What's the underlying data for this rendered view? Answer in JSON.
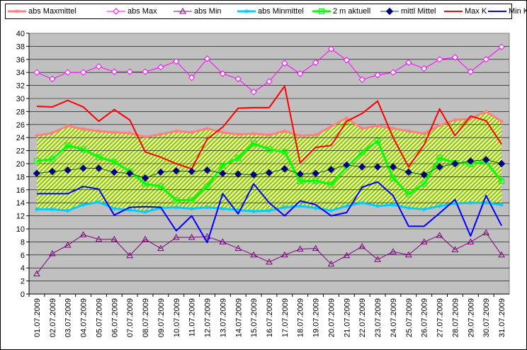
{
  "chart_data": {
    "type": "line",
    "title": "",
    "xlabel": "",
    "ylabel": "",
    "ylim": [
      0,
      40
    ],
    "ytick_step": 2,
    "grid": "horizontal",
    "legend_position": "top",
    "plot_background": "#c0c0c0",
    "categories": [
      "01.07.2009",
      "02.07.2009",
      "03.07.2009",
      "04.07.2009",
      "05.07.2009",
      "06.07.2009",
      "07.07.2009",
      "08.07.2009",
      "09.07.2009",
      "10.07.2009",
      "11.07.2009",
      "12.07.2009",
      "13.07.2009",
      "14.07.2009",
      "15.07.2009",
      "16.07.2009",
      "17.07.2009",
      "18.07.2009",
      "19.07.2009",
      "20.07.2009",
      "21.07.2009",
      "22.07.2009",
      "23.07.2009",
      "24.07.2009",
      "25.07.2009",
      "26.07.2009",
      "27.07.2009",
      "28.07.2009",
      "29.07.2009",
      "30.07.2009",
      "31.07.2009"
    ],
    "band": {
      "upper_series": "abs Maxmittel",
      "lower_series": "abs Minmittel",
      "fill": "#99cc00",
      "hatch": "#ffffff"
    },
    "series": [
      {
        "name": "abs Maxmittel",
        "color": "#ff8080",
        "marker": "star",
        "width": 3,
        "values": [
          24.3,
          24.7,
          25.8,
          25.3,
          25.0,
          24.8,
          24.7,
          24.1,
          24.5,
          25.0,
          24.8,
          25.4,
          24.8,
          24.5,
          24.6,
          24.4,
          25.0,
          24.3,
          24.4,
          25.7,
          27.0,
          25.4,
          25.8,
          25.4,
          25.0,
          24.6,
          25.9,
          26.7,
          26.9,
          28.0,
          26.5
        ]
      },
      {
        "name": "abs Max",
        "color": "#ff00ff",
        "marker": "diamond-open",
        "width": 1,
        "values": [
          34.0,
          33.0,
          34.0,
          34.0,
          34.9,
          34.1,
          34.1,
          34.1,
          34.8,
          35.7,
          33.2,
          36.1,
          33.8,
          33.0,
          31.0,
          32.6,
          35.4,
          33.8,
          35.5,
          37.6,
          35.9,
          32.9,
          33.6,
          34.0,
          35.5,
          34.6,
          36.0,
          36.3,
          34.1,
          36.0,
          37.9
        ]
      },
      {
        "name": "abs Min",
        "color": "#800080",
        "marker": "triangle-open",
        "width": 1,
        "values": [
          3.1,
          6.2,
          7.5,
          9.1,
          8.4,
          8.4,
          5.9,
          8.4,
          7.0,
          8.7,
          8.7,
          8.8,
          8.0,
          7.0,
          6.0,
          4.9,
          6.0,
          6.9,
          7.0,
          4.6,
          5.9,
          7.3,
          5.3,
          6.5,
          6.0,
          8.0,
          9.0,
          6.8,
          8.0,
          9.4,
          6.0
        ]
      },
      {
        "name": "abs Minmittel",
        "color": "#00ccff",
        "marker": "star",
        "width": 3,
        "values": [
          13.0,
          13.0,
          12.8,
          13.7,
          14.1,
          13.1,
          12.9,
          12.6,
          13.2,
          13.3,
          13.1,
          13.3,
          13.1,
          12.9,
          12.7,
          12.8,
          13.3,
          13.5,
          13.2,
          12.8,
          13.5,
          14.0,
          13.5,
          13.7,
          13.2,
          13.0,
          13.5,
          13.9,
          14.0,
          14.0,
          13.7
        ]
      },
      {
        "name": "2 m aktuell",
        "color": "#00ff00",
        "marker": "square-open",
        "width": 3,
        "values": [
          20.4,
          20.7,
          22.8,
          22.2,
          21.0,
          20.3,
          18.8,
          16.9,
          16.5,
          14.4,
          14.4,
          16.5,
          19.7,
          20.9,
          23.1,
          22.2,
          21.8,
          17.3,
          17.4,
          16.8,
          19.5,
          21.7,
          23.5,
          17.8,
          15.3,
          16.9,
          20.9,
          20.1,
          20.0,
          20.3,
          17.3
        ]
      },
      {
        "name": "mittl Mittel",
        "color": "#006600",
        "marker": "diamond-filled",
        "marker_color": "#000080",
        "width": 1,
        "values": [
          18.5,
          18.8,
          19.0,
          19.3,
          19.3,
          18.7,
          18.5,
          17.8,
          18.7,
          18.9,
          18.8,
          19.0,
          18.5,
          18.4,
          18.3,
          18.6,
          19.2,
          18.4,
          18.5,
          19.1,
          19.8,
          19.5,
          19.5,
          19.5,
          18.7,
          18.3,
          19.5,
          20.0,
          20.4,
          20.6,
          20.0
        ]
      },
      {
        "name": "Max K",
        "color": "#ff0000",
        "marker": "none",
        "width": 2,
        "values": [
          28.8,
          28.7,
          29.7,
          28.7,
          26.5,
          28.3,
          26.7,
          21.8,
          21.0,
          20.0,
          19.2,
          23.8,
          25.6,
          28.5,
          28.6,
          28.6,
          31.9,
          20.1,
          22.5,
          22.8,
          26.5,
          27.7,
          29.6,
          24.0,
          19.5,
          22.9,
          28.4,
          24.3,
          27.3,
          26.6,
          23.0
        ]
      },
      {
        "name": "Min K",
        "color": "#0000ff",
        "marker": "none",
        "width": 2,
        "values": [
          15.4,
          15.4,
          15.4,
          16.5,
          16.1,
          12.1,
          13.3,
          13.4,
          13.3,
          9.7,
          12.0,
          7.9,
          15.4,
          12.3,
          16.9,
          14.0,
          12.0,
          14.3,
          13.7,
          12.0,
          12.5,
          16.4,
          17.2,
          15.1,
          10.4,
          10.4,
          12.4,
          14.5,
          8.9,
          15.1,
          10.5
        ]
      }
    ]
  }
}
